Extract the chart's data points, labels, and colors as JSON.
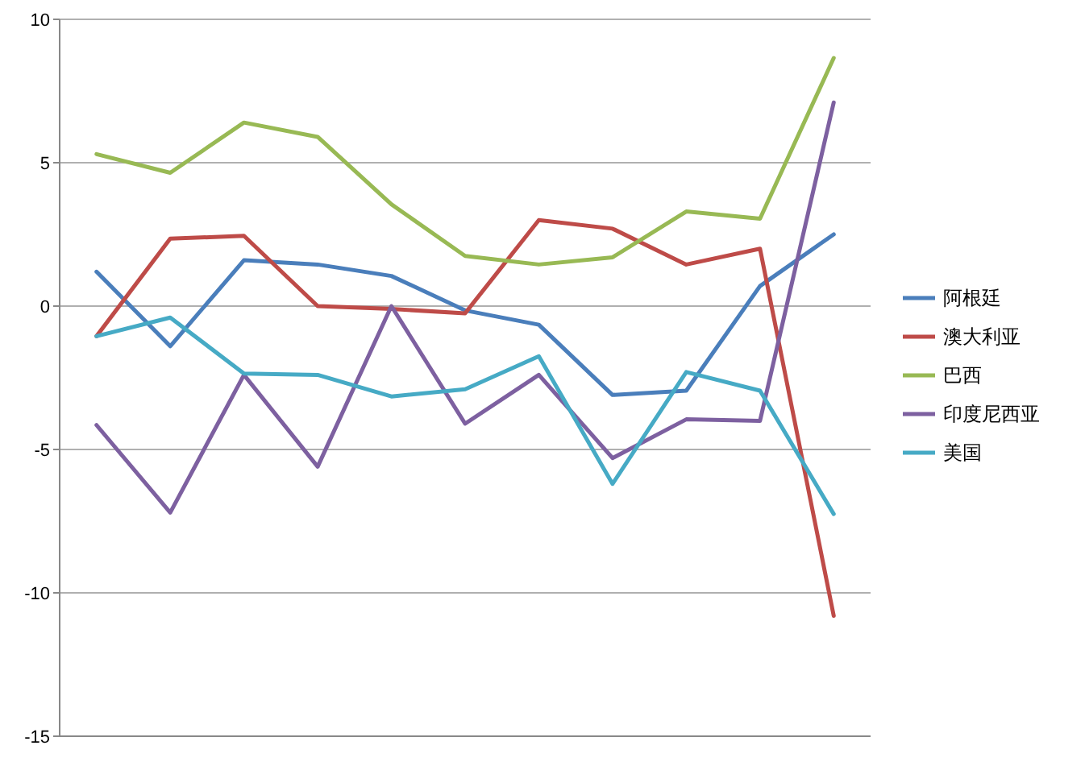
{
  "chart_data": {
    "type": "line",
    "categories": [
      null,
      null,
      null,
      null,
      null,
      null,
      null,
      null,
      null,
      null,
      null
    ],
    "series": [
      {
        "name": "阿根廷",
        "color": "#4a7ebb",
        "values": [
          1.2,
          -1.4,
          1.6,
          1.45,
          1.05,
          -0.15,
          -0.65,
          -3.1,
          -2.95,
          0.7,
          2.5
        ]
      },
      {
        "name": "澳大利亚",
        "color": "#be4b48",
        "values": [
          -1.05,
          2.35,
          2.45,
          0,
          -0.1,
          -0.25,
          3.0,
          2.7,
          1.45,
          2.0,
          -10.8
        ]
      },
      {
        "name": "巴西",
        "color": "#98b954",
        "values": [
          5.3,
          4.65,
          6.4,
          5.9,
          3.55,
          1.75,
          1.45,
          1.7,
          3.3,
          3.05,
          8.65
        ]
      },
      {
        "name": "印度尼西亚",
        "color": "#7d60a0",
        "values": [
          -4.15,
          -7.2,
          -2.4,
          -5.6,
          0,
          -4.1,
          -2.4,
          -5.3,
          -3.95,
          -4.0,
          7.1
        ]
      },
      {
        "name": "美国",
        "color": "#46aac5",
        "values": [
          -1.05,
          -0.4,
          -2.35,
          -2.4,
          -3.15,
          -2.9,
          -1.75,
          -6.2,
          -2.3,
          -2.95,
          -7.25
        ]
      }
    ],
    "ylim": [
      -15,
      10
    ],
    "yticks": [
      -15,
      -10,
      -5,
      0,
      5,
      10
    ],
    "grid": "y",
    "legend": "right",
    "tick_labels": "y",
    "line_style": "solid"
  }
}
